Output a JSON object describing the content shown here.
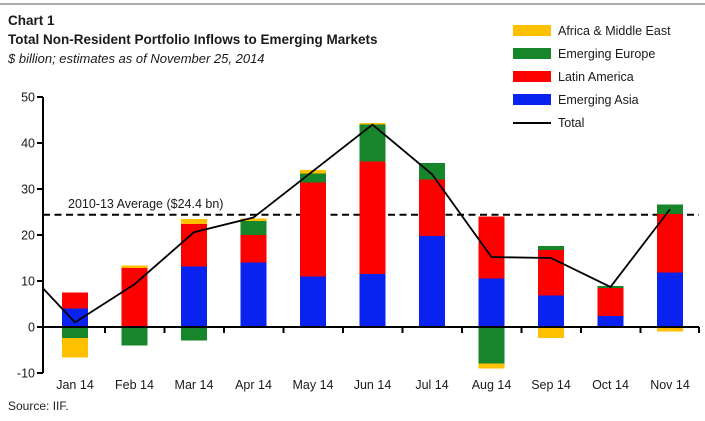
{
  "header": {
    "chart_label": "Chart 1",
    "title": "Total Non-Resident Portfolio Inflows to Emerging Markets",
    "subtitle": "$ billion; estimates as of November 25, 2014"
  },
  "source": "Source: IIF.",
  "colors": {
    "africa": "#FFC000",
    "europe": "#17862B",
    "latam": "#FB0100",
    "asia": "#0A22F0",
    "total_line": "#000000",
    "average_line": "#000000",
    "axis": "#000000",
    "text": "#1a1a1a"
  },
  "chart_data": {
    "type": "bar",
    "stacked": true,
    "grid": false,
    "legend_position": "top-right",
    "categories": [
      "Jan 14",
      "Feb 14",
      "Mar 14",
      "Apr 14",
      "May 14",
      "Jun 14",
      "Jul 14",
      "Aug 14",
      "Sep 14",
      "Oct 14",
      "Nov 14"
    ],
    "series": [
      {
        "name": "Africa & Middle East",
        "color_key": "africa",
        "values": [
          -4.2,
          0.6,
          1.1,
          0.6,
          0.7,
          0.4,
          0.0,
          -1.1,
          -2.4,
          0.0,
          -1.0
        ]
      },
      {
        "name": "Emerging Europe",
        "color_key": "europe",
        "values": [
          -2.4,
          -4.0,
          -2.9,
          3.0,
          2.0,
          8.0,
          3.5,
          -7.9,
          0.9,
          0.4,
          2.0
        ]
      },
      {
        "name": "Latin America",
        "color_key": "latam",
        "values": [
          3.5,
          12.8,
          9.2,
          6.0,
          20.4,
          24.5,
          12.3,
          13.5,
          9.9,
          6.1,
          12.7
        ]
      },
      {
        "name": "Emerging Asia",
        "color_key": "asia",
        "values": [
          4.0,
          0.0,
          13.2,
          14.0,
          11.0,
          11.5,
          19.8,
          10.5,
          6.8,
          2.4,
          11.9
        ]
      }
    ],
    "total_series": {
      "name": "Total",
      "edge_start": 8.4,
      "values": [
        1.0,
        9.3,
        20.6,
        23.8,
        33.9,
        44.0,
        33.2,
        15.2,
        15.0,
        8.7,
        25.6
      ]
    },
    "average_line": {
      "value": 24.4,
      "label": "2010-13 Average ($24.4 bn)"
    },
    "ylabel": "",
    "xlabel": "",
    "ylim": [
      -10,
      50
    ],
    "ytick_step": 10,
    "yticks": [
      -10,
      0,
      10,
      20,
      30,
      40,
      50
    ]
  }
}
